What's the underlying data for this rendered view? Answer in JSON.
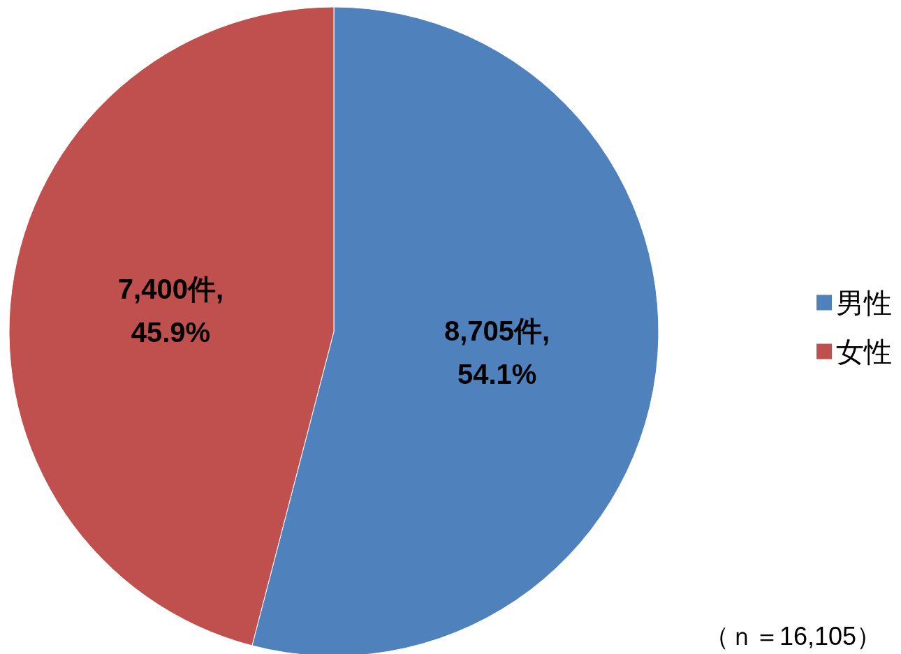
{
  "chart_data": {
    "type": "pie",
    "categories": [
      "男性",
      "女性"
    ],
    "values": [
      8705,
      7400
    ],
    "colors": [
      "#4f81bd",
      "#c0504d"
    ],
    "value_labels": [
      "8,705件,\n54.1%",
      "7,400件,\n45.9%"
    ],
    "legend": "right",
    "annotations": [
      "（ｎ＝16,105）"
    ]
  }
}
